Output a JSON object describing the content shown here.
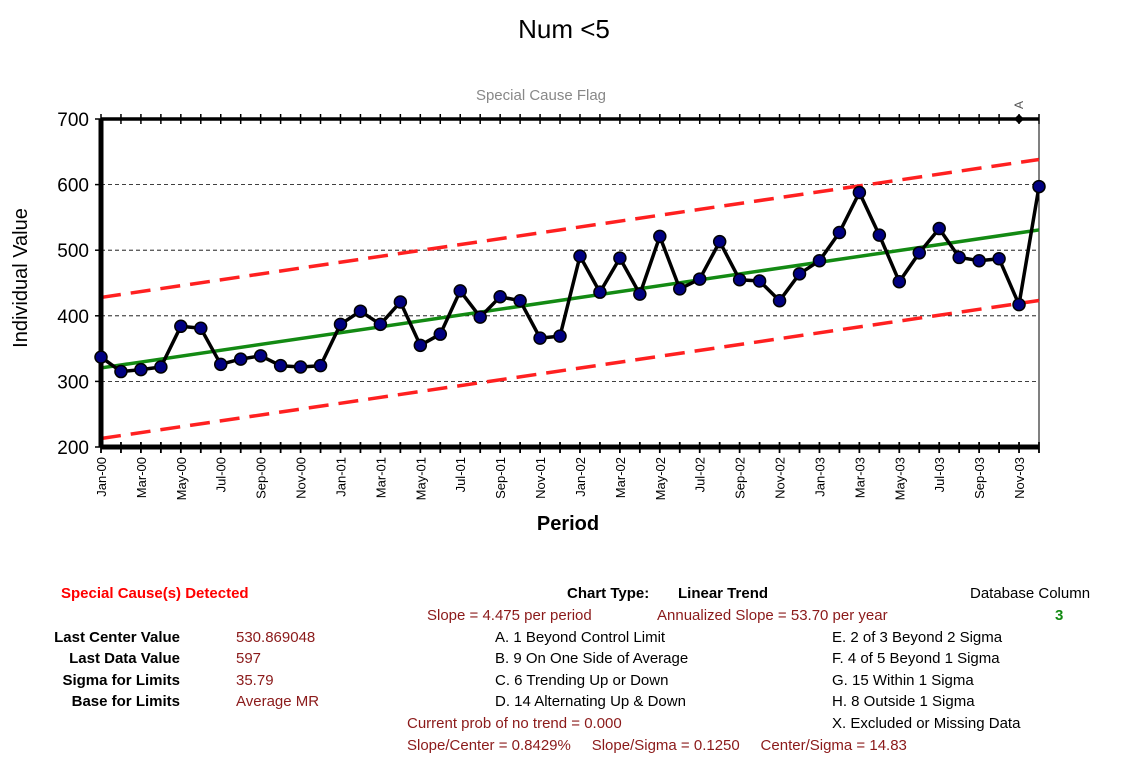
{
  "chart_data": {
    "type": "line",
    "title": "Num <5",
    "subtitle": "Special Cause Flag",
    "xlabel": "Period",
    "ylabel": "Individual Value",
    "ylim": [
      200,
      700
    ],
    "yticks": [
      "200",
      "300",
      "400",
      "500",
      "600",
      "700"
    ],
    "x_tick_labels": [
      "Jan-00",
      "Mar-00",
      "May-00",
      "Jul-00",
      "Sep-00",
      "Nov-00",
      "Jan-01",
      "Mar-01",
      "May-01",
      "Jul-01",
      "Sep-01",
      "Nov-01",
      "Jan-02",
      "Mar-02",
      "May-02",
      "Jul-02",
      "Sep-02",
      "Nov-02",
      "Jan-03",
      "Mar-03",
      "May-03",
      "Jul-03",
      "Sep-03",
      "Nov-03"
    ],
    "grid": true,
    "flag_marker": {
      "label": "A",
      "period_index": 46,
      "y": 700
    },
    "series": [
      {
        "color": "#000080",
        "values": [
          337,
          315,
          318,
          322,
          384,
          381,
          326,
          334,
          339,
          324,
          322,
          324,
          387,
          407,
          387,
          421,
          355,
          372,
          438,
          398,
          429,
          423,
          366,
          369,
          491,
          436,
          488,
          433,
          521,
          441,
          456,
          513,
          455,
          453,
          423,
          464,
          484,
          527,
          588,
          523,
          452,
          496,
          533,
          489,
          484,
          487,
          417,
          597
        ]
      },
      {
        "name": "Center (Linear Trend)",
        "color": "#138a13",
        "start": 320.55,
        "slope": 4.475
      },
      {
        "name": "Control Limits",
        "color": "#ff2020",
        "start_upper": 428,
        "start_lower": 213,
        "slope": 4.475
      }
    ]
  },
  "info": {
    "special_cause": "Special Cause(s) Detected",
    "chart_type_label": "Chart Type:",
    "chart_type_value": "Linear Trend",
    "db_column_label": "Database Column",
    "db_column_value": "3",
    "slope_text": "Slope = 4.475 per period",
    "annualized_text": "Annualized Slope = 53.70 per year",
    "rules": [
      "A.  1 Beyond Control Limit",
      "B.  9 On One Side of Average",
      "C.  6 Trending Up or Down",
      "D.  14 Alternating  Up & Down",
      "E.  2 of 3 Beyond 2 Sigma",
      "F.  4 of 5 Beyond 1 Sigma",
      "G.  15 Within 1 Sigma",
      "H.  8 Outside 1 Sigma",
      "X.  Excluded or Missing Data"
    ],
    "prob_text": "Current prob of no trend = 0.000",
    "bottom_stats": "Slope/Center = 0.8429%     Slope/Sigma = 0.1250     Center/Sigma = 14.83",
    "stats": [
      {
        "label": "Last Center Value",
        "value": "530.869048"
      },
      {
        "label": "Last Data Value",
        "value": "597"
      },
      {
        "label": "Sigma for Limits",
        "value": "35.79"
      },
      {
        "label": "Base for Limits",
        "value": "Average MR"
      }
    ]
  }
}
